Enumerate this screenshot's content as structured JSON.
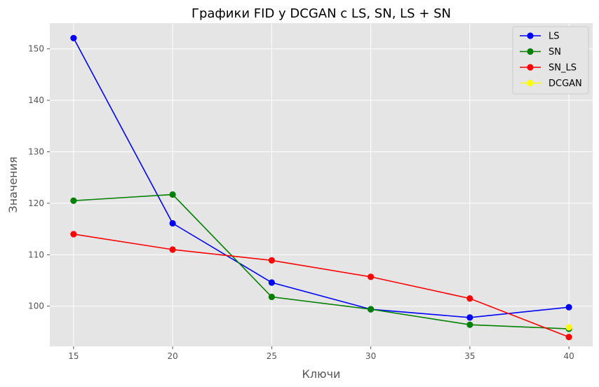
{
  "chart_data": {
    "type": "line",
    "title": "Графики FID у DCGAN с LS, SN, LS + SN",
    "xlabel": "Ключи",
    "ylabel": "Значения",
    "x": [
      15,
      20,
      25,
      30,
      35,
      40
    ],
    "xticks": [
      "15",
      "20",
      "25",
      "30",
      "35",
      "40"
    ],
    "yticks": [
      "100",
      "110",
      "120",
      "130",
      "140",
      "150"
    ],
    "xlim": [
      13.8,
      41.2
    ],
    "ylim": [
      92.2,
      155
    ],
    "grid": true,
    "legend_position": "top-right",
    "series": [
      {
        "name": "LS",
        "color": "#0000ff",
        "x": [
          15,
          20,
          25,
          30,
          35,
          40
        ],
        "values": [
          152.1,
          116.1,
          104.6,
          99.4,
          97.8,
          99.8
        ]
      },
      {
        "name": "SN",
        "color": "#008000",
        "x": [
          15,
          20,
          25,
          30,
          35,
          40
        ],
        "values": [
          120.5,
          121.7,
          101.8,
          99.4,
          96.4,
          95.6
        ]
      },
      {
        "name": "SN_LS",
        "color": "#ff0000",
        "x": [
          15,
          20,
          25,
          30,
          35,
          40
        ],
        "values": [
          114.0,
          111.0,
          108.9,
          105.7,
          101.5,
          94.0
        ]
      },
      {
        "name": "DCGAN",
        "color": "#ffff00",
        "x": [
          40
        ],
        "values": [
          95.9
        ]
      }
    ]
  }
}
